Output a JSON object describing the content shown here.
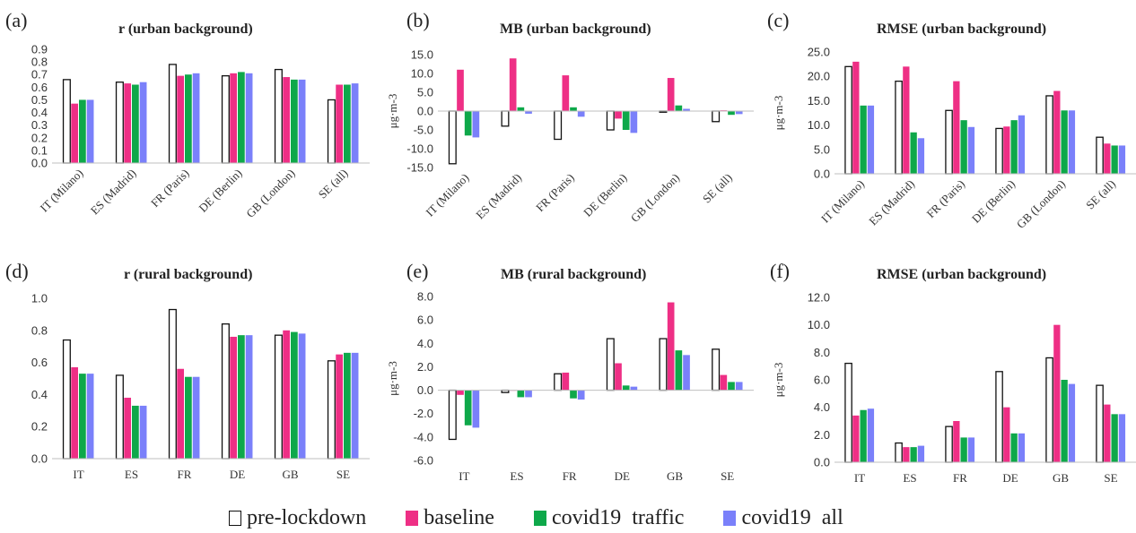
{
  "legend": {
    "items": [
      {
        "label": "pre-lockdown",
        "color": "#ffffff",
        "border": "#111111"
      },
      {
        "label": "baseline",
        "color": "#ee2f85",
        "border": "#ee2f85"
      },
      {
        "label": "covid19  traffic",
        "color": "#0ea84a",
        "border": "#0ea84a"
      },
      {
        "label": "covid19  all",
        "color": "#7a80fa",
        "border": "#7a80fa"
      }
    ]
  },
  "chart_data": [
    {
      "panel": "(a)",
      "type": "bar",
      "title": "r (urban background)",
      "ylabel": "",
      "categories": [
        "IT (Milano)",
        "ES (Madrid)",
        "FR (Paris)",
        "DE (Berlin)",
        "GB (London)",
        "SE (all)"
      ],
      "ylim": [
        0,
        0.9
      ],
      "yticks": [
        0.0,
        0.1,
        0.2,
        0.3,
        0.4,
        0.5,
        0.6,
        0.7,
        0.8,
        0.9
      ],
      "decimals": 1,
      "rotated_labels": true,
      "series": [
        {
          "name": "pre-lockdown",
          "values": [
            0.66,
            0.64,
            0.78,
            0.69,
            0.74,
            0.5
          ]
        },
        {
          "name": "baseline",
          "values": [
            0.47,
            0.63,
            0.69,
            0.71,
            0.68,
            0.62
          ]
        },
        {
          "name": "covid19  traffic",
          "values": [
            0.5,
            0.62,
            0.7,
            0.72,
            0.66,
            0.62
          ]
        },
        {
          "name": "covid19  all",
          "values": [
            0.5,
            0.64,
            0.71,
            0.71,
            0.66,
            0.63
          ]
        }
      ]
    },
    {
      "panel": "(b)",
      "type": "bar",
      "title": "MB (urban background)",
      "ylabel": "μg·m-3",
      "categories": [
        "IT (Milano)",
        "ES (Madrid)",
        "FR (Paris)",
        "DE (Berlin)",
        "GB (London)",
        "SE (all)"
      ],
      "ylim": [
        -15,
        15
      ],
      "yticks": [
        -15,
        -10,
        -5,
        0,
        5,
        10,
        15
      ],
      "decimals": 1,
      "rotated_labels": true,
      "series": [
        {
          "name": "pre-lockdown",
          "values": [
            -14.0,
            -4.0,
            -7.5,
            -5.0,
            -0.3,
            -2.8
          ]
        },
        {
          "name": "baseline",
          "values": [
            11.0,
            14.0,
            9.5,
            -2.0,
            8.8,
            0.2
          ]
        },
        {
          "name": "covid19  traffic",
          "values": [
            -6.5,
            1.0,
            1.0,
            -5.0,
            1.5,
            -1.0
          ]
        },
        {
          "name": "covid19  all",
          "values": [
            -7.0,
            -0.7,
            -1.5,
            -5.8,
            0.6,
            -0.8
          ]
        }
      ]
    },
    {
      "panel": "(c)",
      "type": "bar",
      "title": "RMSE (urban background)",
      "ylabel": "μg·m-3",
      "categories": [
        "IT (Milano)",
        "ES (Madrid)",
        "FR (Paris)",
        "DE (Berlin)",
        "GB (London)",
        "SE (all)"
      ],
      "ylim": [
        0,
        25
      ],
      "yticks": [
        0,
        5,
        10,
        15,
        20,
        25
      ],
      "decimals": 1,
      "rotated_labels": true,
      "series": [
        {
          "name": "pre-lockdown",
          "values": [
            22.0,
            19.0,
            13.0,
            9.3,
            16.0,
            7.5
          ]
        },
        {
          "name": "baseline",
          "values": [
            23.0,
            22.0,
            19.0,
            9.7,
            17.0,
            6.2
          ]
        },
        {
          "name": "covid19  traffic",
          "values": [
            14.0,
            8.5,
            11.0,
            11.0,
            13.0,
            5.8
          ]
        },
        {
          "name": "covid19  all",
          "values": [
            14.0,
            7.3,
            9.6,
            12.0,
            13.0,
            5.8
          ]
        }
      ]
    },
    {
      "panel": "(d)",
      "type": "bar",
      "title": "r (rural background)",
      "ylabel": "",
      "categories": [
        "IT",
        "ES",
        "FR",
        "DE",
        "GB",
        "SE"
      ],
      "ylim": [
        0,
        1.0
      ],
      "yticks": [
        0.0,
        0.2,
        0.4,
        0.6,
        0.8,
        1.0
      ],
      "decimals": 1,
      "rotated_labels": false,
      "series": [
        {
          "name": "pre-lockdown",
          "values": [
            0.74,
            0.52,
            0.93,
            0.84,
            0.77,
            0.61
          ]
        },
        {
          "name": "baseline",
          "values": [
            0.57,
            0.38,
            0.56,
            0.76,
            0.8,
            0.65
          ]
        },
        {
          "name": "covid19  traffic",
          "values": [
            0.53,
            0.33,
            0.51,
            0.77,
            0.79,
            0.66
          ]
        },
        {
          "name": "covid19  all",
          "values": [
            0.53,
            0.33,
            0.51,
            0.77,
            0.78,
            0.66
          ]
        }
      ]
    },
    {
      "panel": "(e)",
      "type": "bar",
      "title": "MB (rural background)",
      "ylabel": "μg·m-3",
      "categories": [
        "IT",
        "ES",
        "FR",
        "DE",
        "GB",
        "SE"
      ],
      "ylim": [
        -6,
        8
      ],
      "yticks": [
        -6,
        -4,
        -2,
        0,
        2,
        4,
        6,
        8
      ],
      "decimals": 1,
      "rotated_labels": false,
      "series": [
        {
          "name": "pre-lockdown",
          "values": [
            -4.2,
            -0.2,
            1.4,
            4.4,
            4.4,
            3.5
          ]
        },
        {
          "name": "baseline",
          "values": [
            -0.4,
            0.0,
            1.5,
            2.3,
            7.5,
            1.3
          ]
        },
        {
          "name": "covid19  traffic",
          "values": [
            -3.0,
            -0.6,
            -0.7,
            0.4,
            3.4,
            0.7
          ]
        },
        {
          "name": "covid19  all",
          "values": [
            -3.2,
            -0.6,
            -0.8,
            0.3,
            3.0,
            0.7
          ]
        }
      ]
    },
    {
      "panel": "(f)",
      "type": "bar",
      "title": "RMSE (urban background)",
      "ylabel": "μg·m-3",
      "categories": [
        "IT",
        "ES",
        "FR",
        "DE",
        "GB",
        "SE"
      ],
      "ylim": [
        0,
        12
      ],
      "yticks": [
        0,
        2,
        4,
        6,
        8,
        10,
        12
      ],
      "decimals": 1,
      "rotated_labels": false,
      "series": [
        {
          "name": "pre-lockdown",
          "values": [
            7.2,
            1.4,
            2.6,
            6.6,
            7.6,
            5.6
          ]
        },
        {
          "name": "baseline",
          "values": [
            3.4,
            1.1,
            3.0,
            4.0,
            10.0,
            4.2
          ]
        },
        {
          "name": "covid19  traffic",
          "values": [
            3.8,
            1.1,
            1.8,
            2.1,
            6.0,
            3.5
          ]
        },
        {
          "name": "covid19  all",
          "values": [
            3.9,
            1.2,
            1.8,
            2.1,
            5.7,
            3.5
          ]
        }
      ]
    }
  ]
}
